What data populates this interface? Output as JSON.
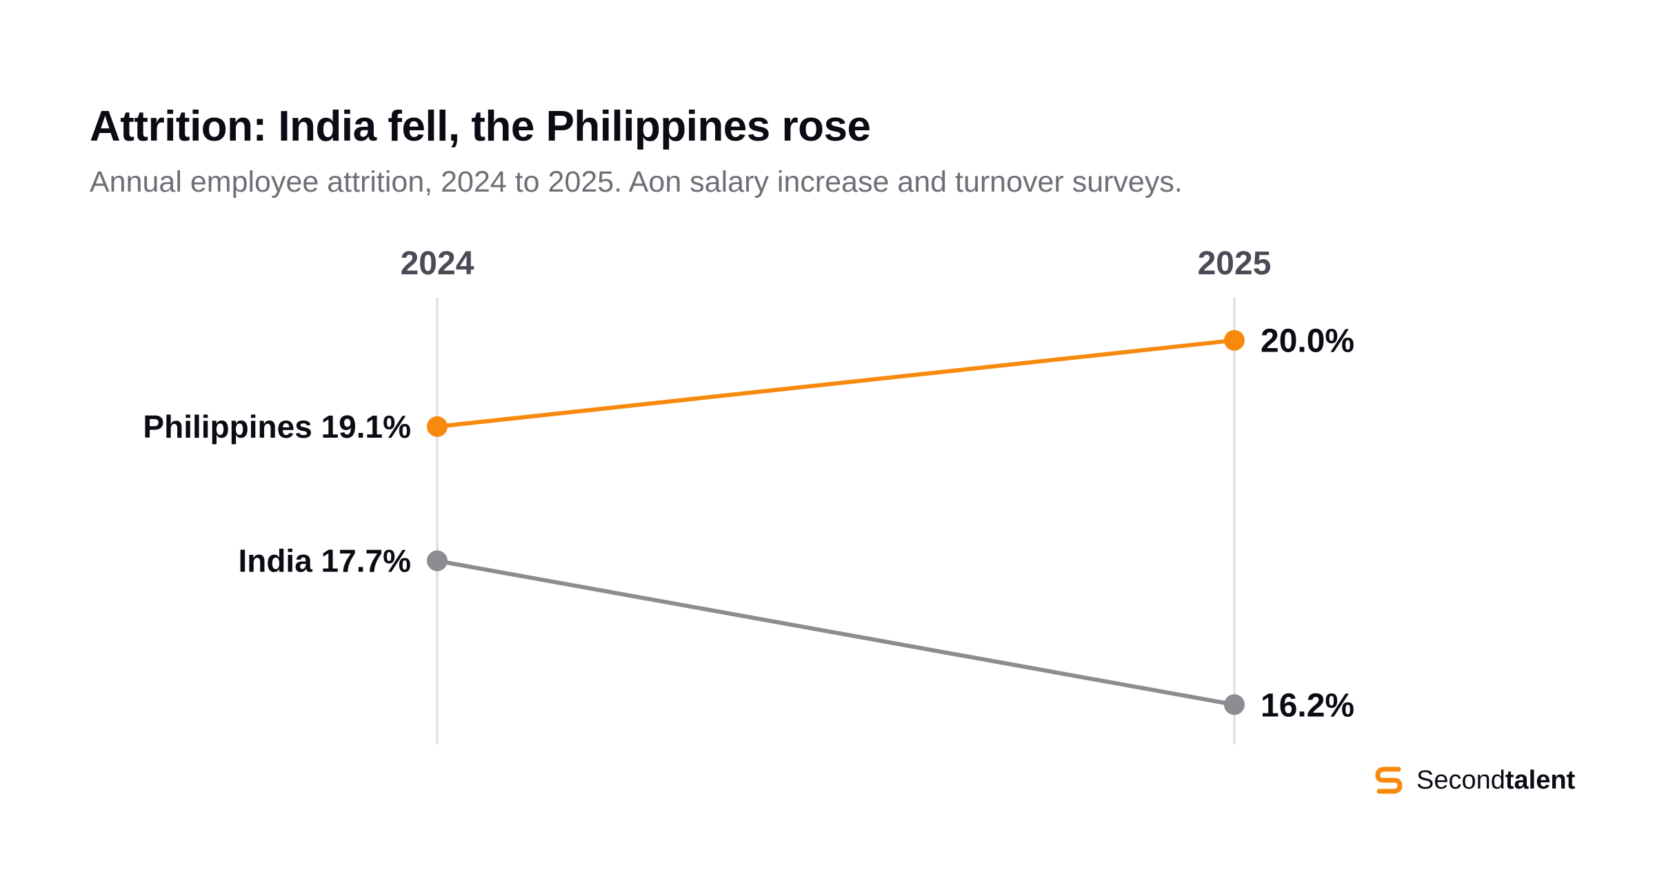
{
  "header": {
    "title": "Attrition: India fell, the Philippines rose",
    "subtitle": "Annual employee attrition, 2024 to 2025. Aon salary increase and turnover surveys."
  },
  "chart_data": {
    "type": "line",
    "style": "slope",
    "categories": [
      "2024",
      "2025"
    ],
    "ylim": [
      15.9,
      20.3
    ],
    "grid": false,
    "series": [
      {
        "name": "Philippines",
        "values": [
          19.1,
          20.0
        ],
        "start_label": "Philippines 19.1%",
        "end_label": "20.0%",
        "color": "#f78a0e"
      },
      {
        "name": "India",
        "values": [
          17.7,
          16.2
        ],
        "start_label": "India 17.7%",
        "end_label": "16.2%",
        "color": "#8c8c91"
      }
    ]
  },
  "brand": {
    "name_light": "Second",
    "name_bold": "talent",
    "accent": "#f78a0e",
    "icon": "secondtalent-logo-icon"
  },
  "colors": {
    "title": "#0b0b14",
    "subtitle": "#6e6e76",
    "axis_line": "#dcdcdc"
  }
}
